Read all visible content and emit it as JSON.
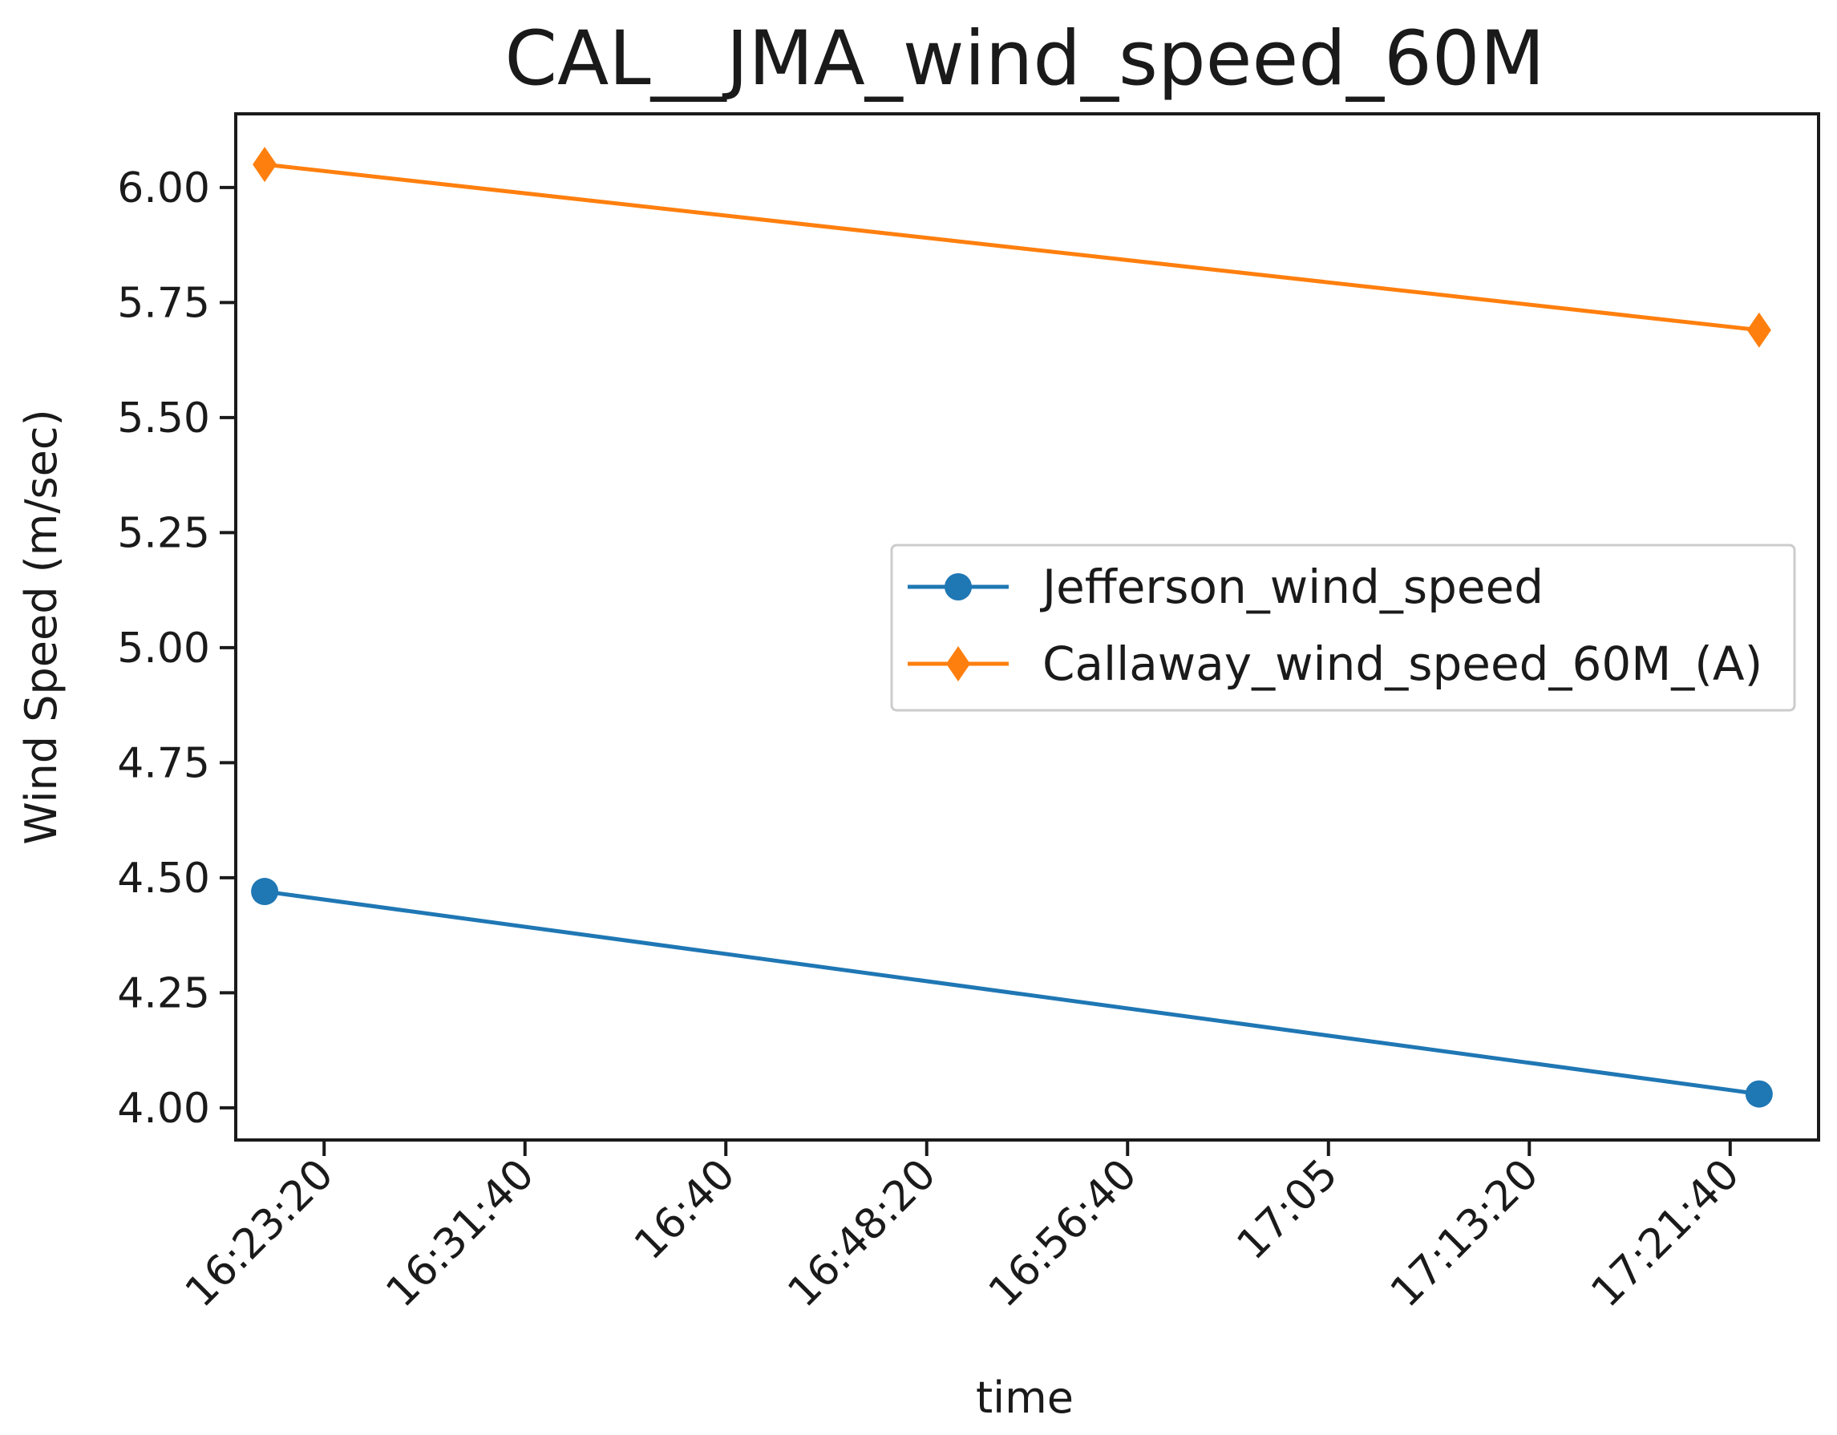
{
  "chart_data": {
    "type": "line",
    "title": "CAL__JMA_wind_speed_60M",
    "xlabel": "time",
    "ylabel": "Wind Speed (m/sec)",
    "xlim": [
      "16:19:40",
      "17:25:20"
    ],
    "ylim": [
      3.93,
      6.16
    ],
    "x_ticks": [
      "16:23:20",
      "16:31:40",
      "16:40",
      "16:48:20",
      "16:56:40",
      "17:05",
      "17:13:20",
      "17:21:40"
    ],
    "y_ticks": [
      "4.00",
      "4.25",
      "4.50",
      "4.75",
      "5.00",
      "5.25",
      "5.50",
      "5.75",
      "6.00"
    ],
    "grid": false,
    "legend_position": "center-right",
    "series": [
      {
        "name": "Jefferson_wind_speed",
        "color": "#1f77b4",
        "marker": "circle",
        "x": [
          "16:20:52",
          "17:22:52"
        ],
        "y": [
          4.47,
          4.03
        ]
      },
      {
        "name": "Callaway_wind_speed_60M_(A)",
        "color": "#ff7f0e",
        "marker": "diamond",
        "x": [
          "16:20:52",
          "17:22:52"
        ],
        "y": [
          6.05,
          5.69
        ]
      }
    ]
  }
}
